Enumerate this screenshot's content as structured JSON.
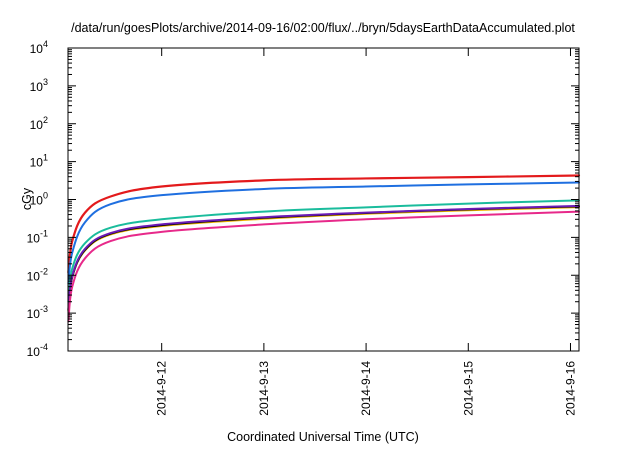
{
  "chart_data": {
    "type": "line",
    "title": "/data/run/goesPlots/archive/2014-09-16/02:00/flux/../bryn/5daysEarthDataAccumulated.plot",
    "xlabel": "Coordinated Universal Time (UTC)",
    "ylabel": "cGy",
    "y_scale": "log",
    "xlim": [
      "2014-09-11 02:00",
      "2014-09-16 02:00"
    ],
    "ylim": [
      0.0001,
      10000
    ],
    "y_ticks": [
      {
        "base": "10",
        "exp": "-4",
        "value": 0.0001
      },
      {
        "base": "10",
        "exp": "-3",
        "value": 0.001
      },
      {
        "base": "10",
        "exp": "-2",
        "value": 0.01
      },
      {
        "base": "10",
        "exp": "-1",
        "value": 0.1
      },
      {
        "base": "10",
        "exp": "0",
        "value": 1
      },
      {
        "base": "10",
        "exp": "1",
        "value": 10
      },
      {
        "base": "10",
        "exp": "2",
        "value": 100
      },
      {
        "base": "10",
        "exp": "3",
        "value": 1000
      },
      {
        "base": "10",
        "exp": "4",
        "value": 10000
      }
    ],
    "x_ticks": [
      {
        "label": "2014-9-12",
        "value": "2014-09-12 00:00"
      },
      {
        "label": "2014-9-13",
        "value": "2014-09-13 00:00"
      },
      {
        "label": "2014-9-14",
        "value": "2014-09-14 00:00"
      },
      {
        "label": "2014-9-15",
        "value": "2014-09-15 00:00"
      },
      {
        "label": "2014-9-16",
        "value": "2014-09-16 00:00"
      }
    ],
    "grid": false,
    "series": [
      {
        "color": "#e31a1c",
        "width": 2.2,
        "x": [
          "2014-09-11 02:05",
          "2014-09-11 03:00",
          "2014-09-11 06:00",
          "2014-09-11 12:00",
          "2014-09-12 00:00",
          "2014-09-13 00:00",
          "2014-09-14 00:00",
          "2014-09-15 00:00",
          "2014-09-16 02:00"
        ],
        "y": [
          0.012,
          0.08,
          0.45,
          1.2,
          2.2,
          3.2,
          3.6,
          3.9,
          4.3
        ]
      },
      {
        "color": "#1f6fe0",
        "width": 2.0,
        "x": [
          "2014-09-11 02:05",
          "2014-09-11 03:00",
          "2014-09-11 06:00",
          "2014-09-11 12:00",
          "2014-09-12 00:00",
          "2014-09-13 00:00",
          "2014-09-14 00:00",
          "2014-09-15 00:00",
          "2014-09-16 02:00"
        ],
        "y": [
          0.006,
          0.04,
          0.25,
          0.75,
          1.3,
          1.9,
          2.2,
          2.5,
          2.8
        ]
      },
      {
        "color": "#1abc9c",
        "width": 2.0,
        "x": [
          "2014-09-11 02:05",
          "2014-09-11 03:00",
          "2014-09-11 06:00",
          "2014-09-11 12:00",
          "2014-09-12 00:00",
          "2014-09-13 00:00",
          "2014-09-14 00:00",
          "2014-09-15 00:00",
          "2014-09-16 02:00"
        ],
        "y": [
          0.002,
          0.015,
          0.07,
          0.18,
          0.3,
          0.48,
          0.62,
          0.78,
          0.95
        ]
      },
      {
        "color": "#f0b400",
        "width": 2.0,
        "x": [
          "2014-09-11 02:05",
          "2014-09-11 03:00",
          "2014-09-11 06:00",
          "2014-09-11 12:00",
          "2014-09-12 00:00",
          "2014-09-13 00:00",
          "2014-09-14 00:00",
          "2014-09-15 00:00",
          "2014-09-16 02:00"
        ],
        "y": [
          0.0012,
          0.009,
          0.045,
          0.12,
          0.2,
          0.31,
          0.42,
          0.52,
          0.63
        ]
      },
      {
        "color": "#000000",
        "width": 2.0,
        "x": [
          "2014-09-11 02:05",
          "2014-09-11 03:00",
          "2014-09-11 06:00",
          "2014-09-11 12:00",
          "2014-09-12 00:00",
          "2014-09-13 00:00",
          "2014-09-14 00:00",
          "2014-09-15 00:00",
          "2014-09-16 02:00"
        ],
        "y": [
          0.0012,
          0.009,
          0.047,
          0.125,
          0.21,
          0.33,
          0.44,
          0.55,
          0.66
        ]
      },
      {
        "color": "#6a1bb5",
        "width": 2.0,
        "x": [
          "2014-09-11 02:05",
          "2014-09-11 03:00",
          "2014-09-11 06:00",
          "2014-09-11 12:00",
          "2014-09-12 00:00",
          "2014-09-13 00:00",
          "2014-09-14 00:00",
          "2014-09-15 00:00",
          "2014-09-16 02:00"
        ],
        "y": [
          0.0013,
          0.0095,
          0.05,
          0.13,
          0.22,
          0.34,
          0.45,
          0.56,
          0.68
        ]
      },
      {
        "color": "#e7298a",
        "width": 2.0,
        "x": [
          "2014-09-11 02:05",
          "2014-09-11 03:00",
          "2014-09-11 06:00",
          "2014-09-11 12:00",
          "2014-09-12 00:00",
          "2014-09-13 00:00",
          "2014-09-14 00:00",
          "2014-09-15 00:00",
          "2014-09-16 02:00"
        ],
        "y": [
          0.0006,
          0.005,
          0.028,
          0.08,
          0.14,
          0.22,
          0.3,
          0.38,
          0.48
        ]
      }
    ]
  }
}
